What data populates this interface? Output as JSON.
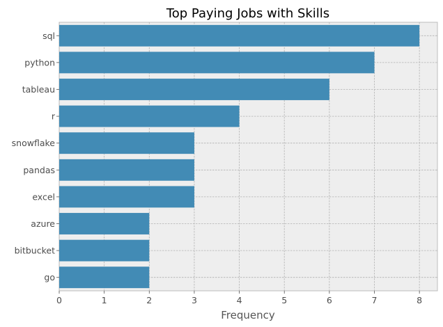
{
  "chart_data": {
    "type": "bar",
    "orientation": "horizontal",
    "title": "Top Paying Jobs with Skills",
    "xlabel": "Frequency",
    "ylabel": "",
    "categories": [
      "sql",
      "python",
      "tableau",
      "r",
      "snowflake",
      "pandas",
      "excel",
      "azure",
      "bitbucket",
      "go"
    ],
    "values": [
      8,
      7,
      6,
      4,
      3,
      3,
      3,
      2,
      2,
      2
    ],
    "xlim": [
      0,
      8.4
    ],
    "xticks": [
      0,
      1,
      2,
      3,
      4,
      5,
      6,
      7,
      8
    ],
    "grid": true,
    "bar_color": "#428bb5",
    "background_color": "#eeeeee"
  }
}
